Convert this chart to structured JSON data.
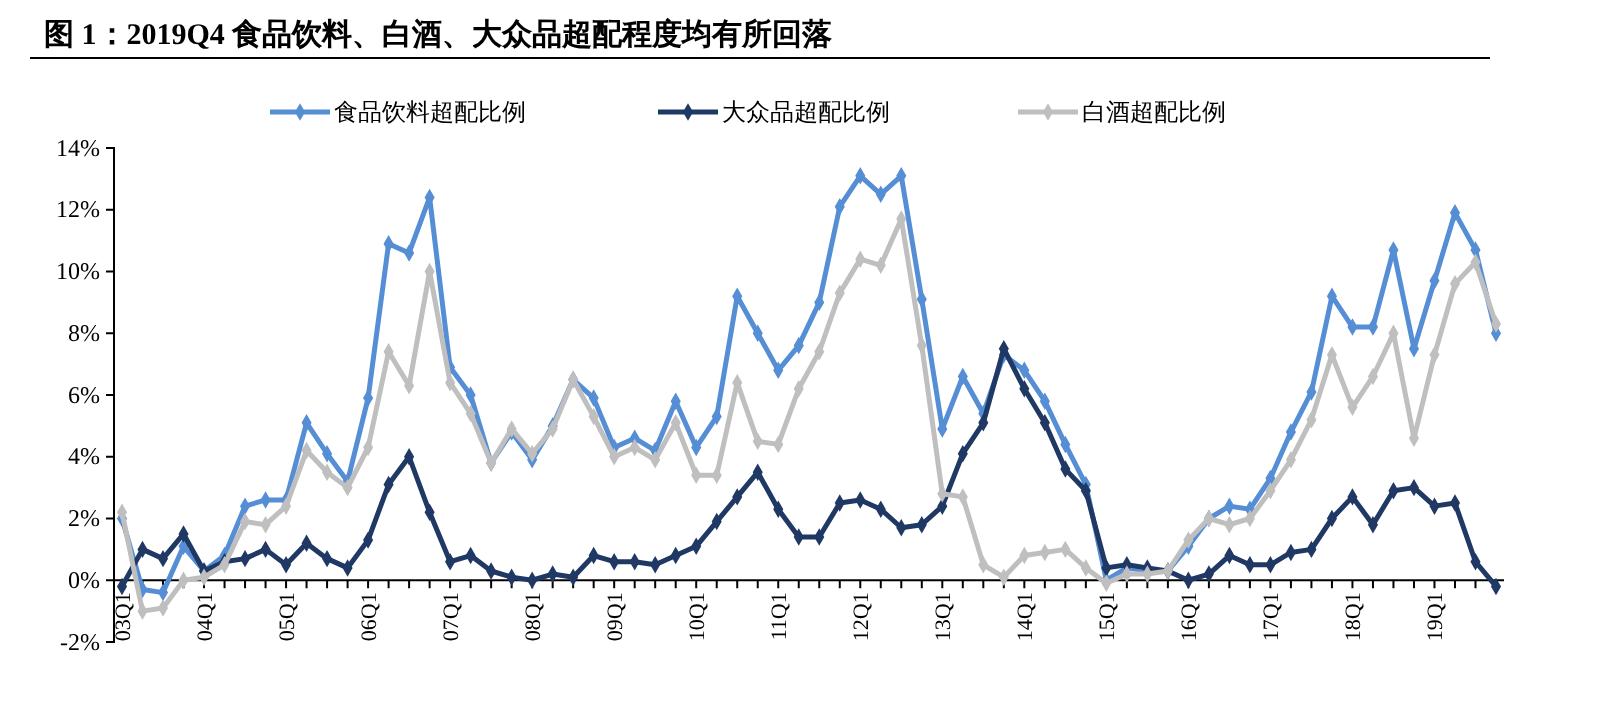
{
  "chart_data": {
    "type": "line",
    "title": "图 1：2019Q4 食品饮料、白酒、大众品超配程度均有所回落",
    "categories": [
      "03Q1",
      null,
      null,
      null,
      "04Q1",
      null,
      null,
      null,
      "05Q1",
      null,
      null,
      null,
      "06Q1",
      null,
      null,
      null,
      "07Q1",
      null,
      null,
      null,
      "08Q1",
      null,
      null,
      null,
      "09Q1",
      null,
      null,
      null,
      "10Q1",
      null,
      null,
      null,
      "11Q1",
      null,
      null,
      null,
      "12Q1",
      null,
      null,
      null,
      "13Q1",
      null,
      null,
      null,
      "14Q1",
      null,
      null,
      null,
      "15Q1",
      null,
      null,
      null,
      "16Q1",
      null,
      null,
      null,
      "17Q1",
      null,
      null,
      null,
      "18Q1",
      null,
      null,
      null,
      "19Q1",
      null,
      null,
      null
    ],
    "series": [
      {
        "name": "食品饮料超配比例",
        "color": "#558ed5",
        "values": [
          2.0,
          -0.3,
          -0.4,
          1.1,
          0.3,
          0.8,
          2.4,
          2.6,
          2.6,
          5.1,
          4.1,
          3.2,
          5.9,
          10.9,
          10.6,
          12.4,
          6.9,
          6.0,
          3.8,
          4.8,
          3.9,
          5.0,
          6.5,
          5.9,
          4.3,
          4.6,
          4.2,
          5.8,
          4.3,
          5.3,
          9.2,
          8.0,
          6.8,
          7.6,
          9.0,
          12.1,
          13.1,
          12.5,
          13.1,
          9.1,
          4.9,
          6.6,
          5.4,
          7.3,
          6.8,
          5.8,
          4.4,
          3.1,
          0.0,
          0.4,
          0.3,
          0.3,
          1.1,
          2.0,
          2.4,
          2.3,
          3.3,
          4.8,
          6.1,
          9.2,
          8.2,
          8.2,
          10.7,
          7.5,
          9.7,
          11.9,
          10.7,
          8.0
        ]
      },
      {
        "name": "大众品超配比例",
        "color": "#1f3864",
        "values": [
          -0.2,
          1.0,
          0.7,
          1.5,
          0.3,
          0.6,
          0.7,
          1.0,
          0.5,
          1.2,
          0.7,
          0.4,
          1.3,
          3.1,
          4.0,
          2.2,
          0.6,
          0.8,
          0.3,
          0.1,
          0.0,
          0.2,
          0.1,
          0.8,
          0.6,
          0.6,
          0.5,
          0.8,
          1.1,
          1.9,
          2.7,
          3.5,
          2.3,
          1.4,
          1.4,
          2.5,
          2.6,
          2.3,
          1.7,
          1.8,
          2.4,
          4.1,
          5.1,
          7.5,
          6.2,
          5.1,
          3.6,
          2.9,
          0.4,
          0.5,
          0.4,
          0.3,
          0.0,
          0.2,
          0.8,
          0.5,
          0.5,
          0.9,
          1.0,
          2.0,
          2.7,
          1.8,
          2.9,
          3.0,
          2.4,
          2.5,
          0.6,
          -0.2
        ]
      },
      {
        "name": "白酒超配比例",
        "color": "#bfbfbf",
        "values": [
          2.2,
          -1.0,
          -0.9,
          0.0,
          0.1,
          0.5,
          1.9,
          1.8,
          2.4,
          4.2,
          3.5,
          3.0,
          4.3,
          7.4,
          6.3,
          10.0,
          6.4,
          5.4,
          3.8,
          4.9,
          4.1,
          4.9,
          6.5,
          5.3,
          4.0,
          4.3,
          3.9,
          5.1,
          3.4,
          3.4,
          6.4,
          4.5,
          4.4,
          6.2,
          7.4,
          9.3,
          10.4,
          10.2,
          11.7,
          7.6,
          2.8,
          2.7,
          0.5,
          0.1,
          0.8,
          0.9,
          1.0,
          0.4,
          -0.1,
          0.2,
          0.2,
          0.3,
          1.3,
          2.0,
          1.8,
          2.0,
          2.9,
          3.9,
          5.2,
          7.3,
          5.6,
          6.6,
          8.0,
          4.6,
          7.3,
          9.6,
          10.3,
          8.3
        ]
      }
    ],
    "ylim": [
      -2,
      14
    ],
    "yticks": [
      {
        "value": -2,
        "label": "-2%"
      },
      {
        "value": 0,
        "label": "0%"
      },
      {
        "value": 2,
        "label": "2%"
      },
      {
        "value": 4,
        "label": "4%"
      },
      {
        "value": 6,
        "label": "6%"
      },
      {
        "value": 8,
        "label": "8%"
      },
      {
        "value": 10,
        "label": "10%"
      },
      {
        "value": 12,
        "label": "12%"
      },
      {
        "value": 14,
        "label": "14%"
      }
    ],
    "grid": false,
    "legend": "top",
    "marker": "diamond",
    "line_style": "solid"
  }
}
